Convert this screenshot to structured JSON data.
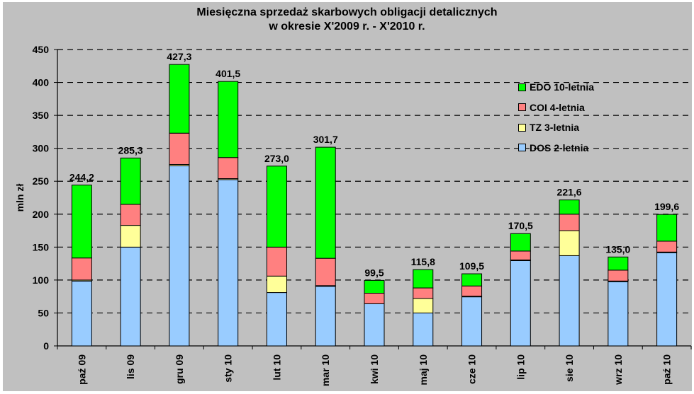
{
  "chart_data": {
    "type": "bar",
    "stacked": true,
    "title": "Miesięczna sprzedaż skarbowych obligacji detalicznych",
    "subtitle": "w okresie X'2009 r. - X'2010 r.",
    "xlabel": "",
    "ylabel": "mln zł",
    "ylim": [
      0,
      450
    ],
    "yticks": [
      0,
      50,
      100,
      150,
      200,
      250,
      300,
      350,
      400,
      450
    ],
    "grid": "horizontal dashed",
    "legend_position": "upper right (inside)",
    "categories": [
      "paź 09",
      "lis 09",
      "gru 09",
      "sty 10",
      "lut 10",
      "mar 10",
      "kwi 10",
      "maj 10",
      "cze 10",
      "lip 10",
      "sie 10",
      "wrz 10",
      "paź 10"
    ],
    "series": [
      {
        "name": "DOS 2-letnia",
        "color": "#99ccff",
        "values": [
          98.5,
          150.0,
          273.5,
          252.5,
          81.0,
          90.5,
          64.0,
          50.0,
          74.5,
          129.5,
          137.0,
          97.5,
          141.5
        ]
      },
      {
        "name": "TZ 3-letnia",
        "color": "#ffff99",
        "values": [
          1.5,
          33.0,
          2.0,
          1.5,
          25.0,
          1.0,
          0.0,
          22.0,
          1.0,
          1.0,
          38.0,
          1.0,
          1.0
        ]
      },
      {
        "name": "COI 4-letnia",
        "color": "#ff8080",
        "values": [
          33.5,
          32.0,
          47.5,
          32.0,
          44.0,
          41.5,
          16.0,
          16.0,
          15.5,
          13.5,
          25.0,
          16.5,
          16.5
        ]
      },
      {
        "name": "EDO 10-letnia",
        "color": "#00ff00",
        "values": [
          110.7,
          70.3,
          104.3,
          115.5,
          123.0,
          168.7,
          19.5,
          27.8,
          18.5,
          26.5,
          21.6,
          20.0,
          40.6
        ]
      }
    ],
    "totals": [
      244.2,
      285.3,
      427.3,
      401.5,
      273.0,
      301.7,
      99.5,
      115.8,
      109.5,
      170.5,
      221.6,
      135.0,
      199.6
    ],
    "total_labels": [
      "244,2",
      "285,3",
      "427,3",
      "401,5",
      "273,0",
      "301,7",
      "99,5",
      "115,8",
      "109,5",
      "170,5",
      "221,6",
      "135,0",
      "199,6"
    ]
  },
  "legend": {
    "items": [
      {
        "label": "EDO 10-letnia",
        "color": "#00ff00"
      },
      {
        "label": "COI 4-letnia",
        "color": "#ff8080"
      },
      {
        "label": "TZ 3-letnia",
        "color": "#ffff99"
      },
      {
        "label": "DOS 2-letnia",
        "color": "#99ccff"
      }
    ]
  },
  "colors": {
    "background": "#c0c0c0",
    "axis": "#000000",
    "grid": "#000000"
  }
}
